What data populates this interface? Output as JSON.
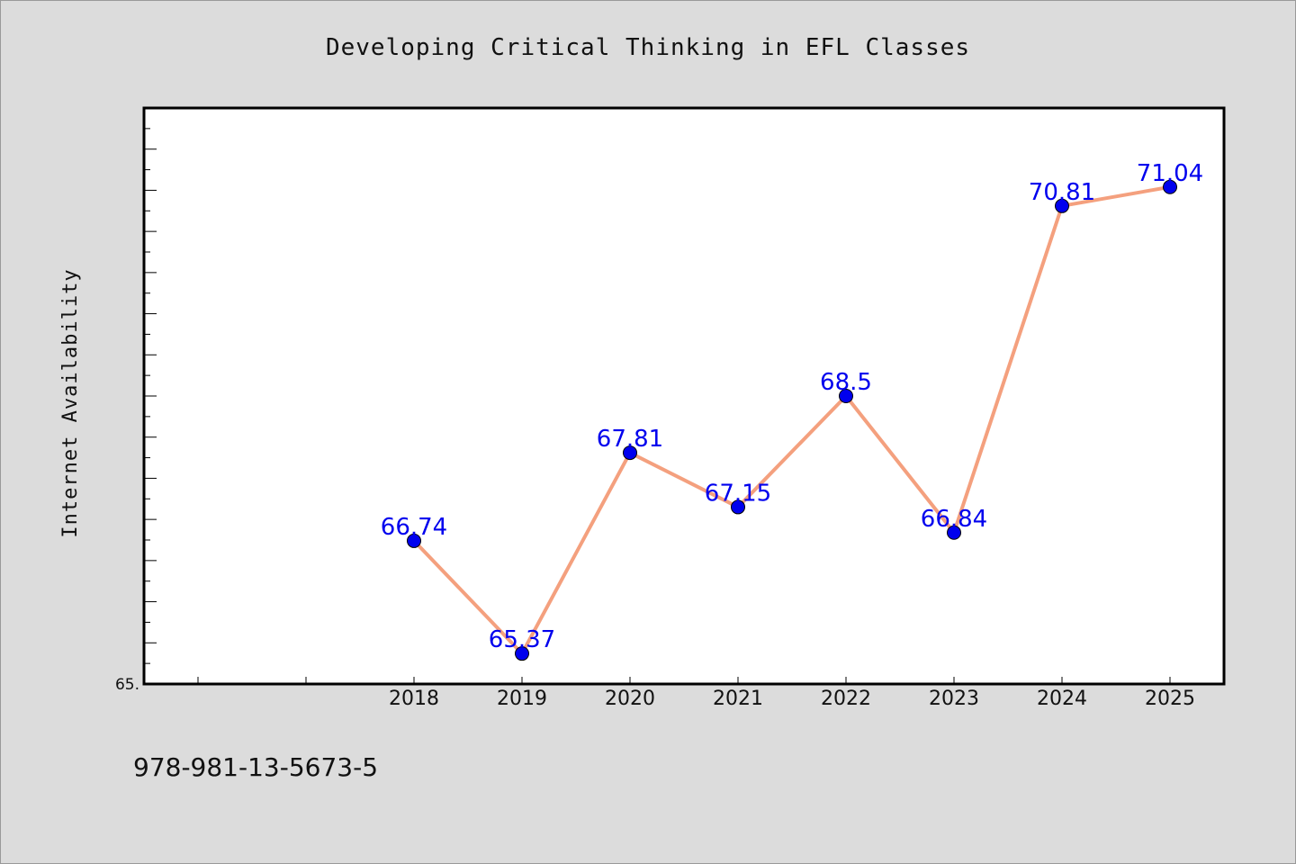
{
  "chart_data": {
    "type": "line",
    "title": "Developing Critical Thinking in EFL Classes",
    "xlabel": "",
    "ylabel": "Internet Availability",
    "categories": [
      "2018",
      "2019",
      "2020",
      "2021",
      "2022",
      "2023",
      "2024",
      "2025"
    ],
    "series": [
      {
        "values": [
          66.74,
          65.37,
          67.81,
          67.15,
          68.5,
          66.84,
          70.81,
          71.04
        ],
        "labels": [
          "66.74",
          "65.37",
          "67.81",
          "67.15",
          "68.5",
          "66.84",
          "70.81",
          "71.04"
        ]
      }
    ],
    "ylim": [
      65.0,
      72.0
    ],
    "ytick_label": "65.",
    "grid": false,
    "legend": false,
    "colors": {
      "line": "#f4a07e",
      "marker": "#0000ee",
      "data_label": "#0000ee",
      "plot_background": "#ffffff",
      "figure_background": "#dcdcdc"
    }
  },
  "footer": {
    "isbn": "978-981-13-5673-5"
  }
}
